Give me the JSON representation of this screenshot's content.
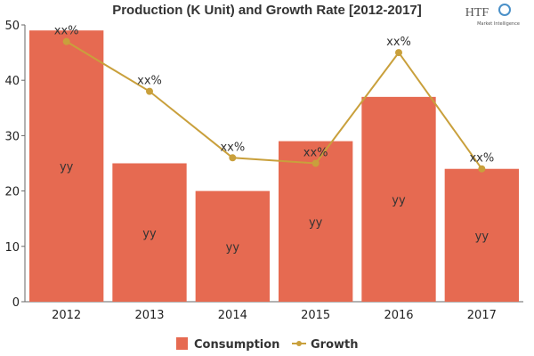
{
  "chart_data": {
    "type": "bar",
    "title": "Production (K Unit) and Growth Rate [2012-2017]",
    "categories": [
      "2012",
      "2013",
      "2014",
      "2015",
      "2016",
      "2017"
    ],
    "ylim": [
      0,
      50
    ],
    "yticks": [
      0,
      10,
      20,
      30,
      40,
      50
    ],
    "grid": false,
    "legend_placement": "bottom",
    "series": [
      {
        "name": "Consumption",
        "type": "bar",
        "color": "#e66a51",
        "values": [
          49,
          25,
          20,
          29,
          37,
          24
        ],
        "data_labels": [
          "yy",
          "yy",
          "yy",
          "yy",
          "yy",
          "yy"
        ]
      },
      {
        "name": "Growth",
        "type": "line",
        "color": "#c9a03c",
        "values": [
          47,
          38,
          26,
          25,
          45,
          24
        ],
        "data_labels": [
          "xx%",
          "xx%",
          "xx%",
          "xx%",
          "xx%",
          "xx%"
        ]
      }
    ]
  },
  "logo": {
    "text": "HTF",
    "subtext": "Market Intelligence"
  }
}
